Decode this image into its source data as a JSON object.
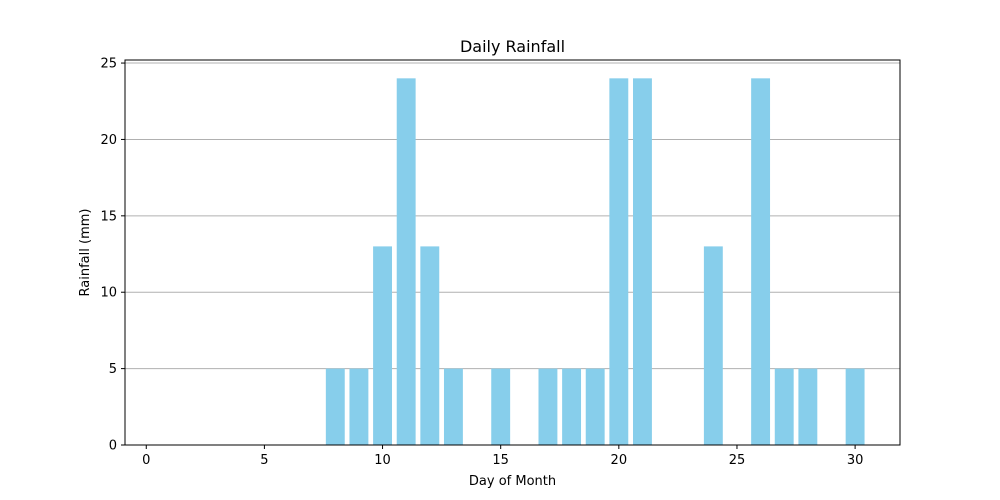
{
  "chart_data": {
    "type": "bar",
    "title": "Daily Rainfall",
    "xlabel": "Day of Month",
    "ylabel": "Rainfall (mm)",
    "x": [
      1,
      2,
      3,
      4,
      5,
      6,
      7,
      8,
      9,
      10,
      11,
      12,
      13,
      14,
      15,
      16,
      17,
      18,
      19,
      20,
      21,
      22,
      23,
      24,
      25,
      26,
      27,
      28,
      29,
      30
    ],
    "values": [
      0,
      0,
      0,
      0,
      0,
      0,
      0,
      5,
      5,
      13,
      24,
      13,
      5,
      0,
      5,
      0,
      5,
      5,
      5,
      24,
      24,
      0,
      0,
      13,
      0,
      24,
      5,
      5,
      0,
      5
    ],
    "xlim": [
      -0.9,
      31.9
    ],
    "ylim": [
      0,
      25.2
    ],
    "xticks": [
      0,
      5,
      10,
      15,
      20,
      25,
      30
    ],
    "yticks": [
      0,
      5,
      10,
      15,
      20,
      25
    ],
    "grid": "y",
    "bar_color": "#87ceeb"
  }
}
